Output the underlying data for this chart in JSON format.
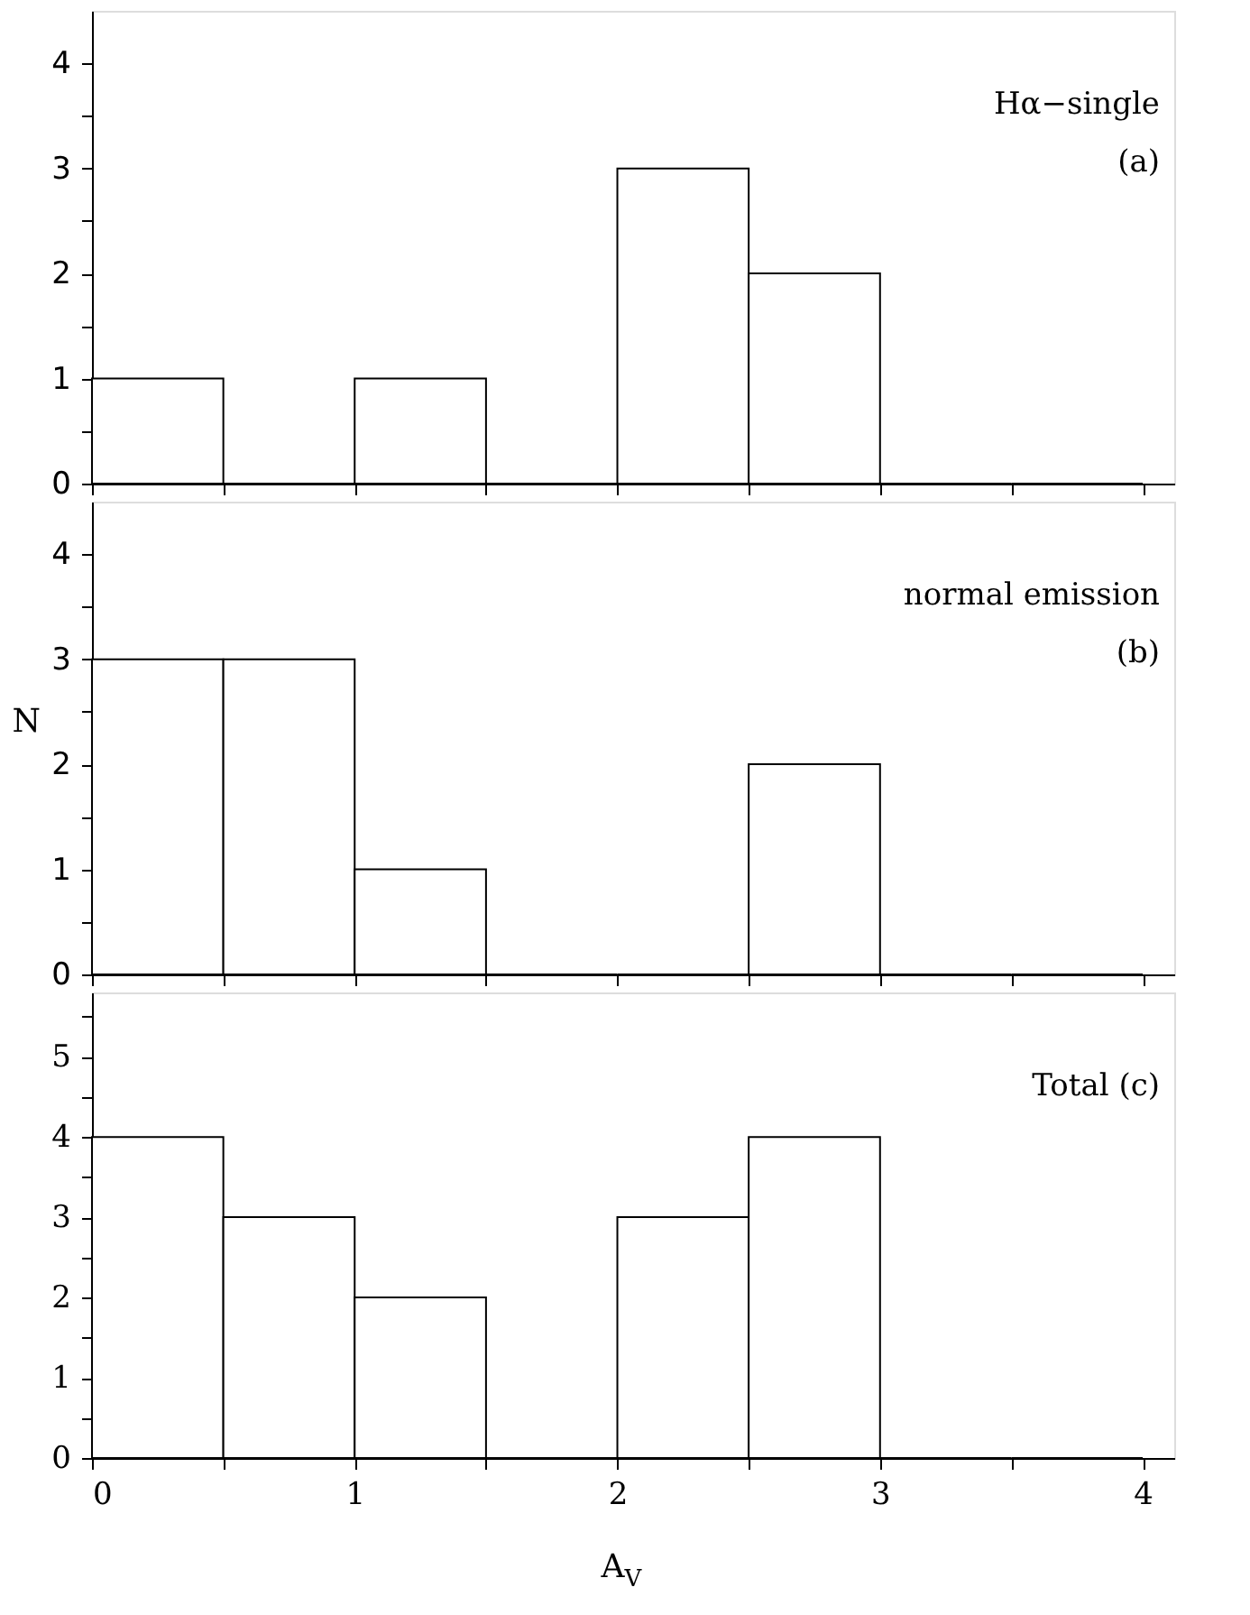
{
  "chart_data": [
    {
      "type": "histogram",
      "bins": [
        0,
        0.5,
        1,
        1.5,
        2,
        2.5,
        3,
        3.5,
        4
      ],
      "values": [
        1,
        0,
        1,
        0,
        3,
        2,
        0,
        0
      ],
      "color": "#ffffff",
      "xlim": [
        0,
        4.12
      ],
      "xticks": [
        0,
        {
          "value": 0.5,
          "label": null
        },
        1,
        {
          "value": 1.5,
          "label": null
        },
        2,
        {
          "value": 2.5,
          "label": null
        },
        3,
        {
          "value": 3.5,
          "label": null
        },
        4
      ],
      "ylim": [
        0,
        4.5
      ],
      "yticks": [
        0,
        {
          "value": 0.5,
          "label": null
        },
        1,
        {
          "value": 1.5,
          "label": null
        },
        2,
        {
          "value": 2.5,
          "label": null
        },
        3,
        {
          "value": 3.5,
          "label": null
        },
        4
      ],
      "tick_labels": "y",
      "annotations": [
        "Hα−single",
        "(a)"
      ]
    },
    {
      "type": "histogram",
      "bins": [
        0,
        0.5,
        1,
        1.5,
        2,
        2.5,
        3,
        3.5,
        4
      ],
      "values": [
        3,
        3,
        1,
        0,
        0,
        2,
        0,
        0
      ],
      "color": "#ffffff",
      "xlim": [
        0,
        4.12
      ],
      "xticks": [
        0,
        {
          "value": 0.5,
          "label": null
        },
        1,
        {
          "value": 1.5,
          "label": null
        },
        2,
        {
          "value": 2.5,
          "label": null
        },
        3,
        {
          "value": 3.5,
          "label": null
        },
        4
      ],
      "ylim": [
        0,
        4.5
      ],
      "yticks": [
        0,
        {
          "value": 0.5,
          "label": null
        },
        1,
        {
          "value": 1.5,
          "label": null
        },
        2,
        {
          "value": 2.5,
          "label": null
        },
        3,
        {
          "value": 3.5,
          "label": null
        },
        4
      ],
      "ylabel": "N",
      "tick_labels": "y",
      "annotations": [
        "normal emission",
        "(b)"
      ]
    },
    {
      "type": "histogram",
      "bins": [
        0,
        0.5,
        1,
        1.5,
        2,
        2.5,
        3,
        3.5,
        4
      ],
      "values": [
        4,
        3,
        2,
        0,
        3,
        4,
        0,
        0
      ],
      "color": "#ffffff",
      "xlim": [
        0,
        4.12
      ],
      "xticks": [
        0,
        {
          "value": 0.5,
          "label": null
        },
        1,
        {
          "value": 1.5,
          "label": null
        },
        2,
        {
          "value": 2.5,
          "label": null
        },
        3,
        {
          "value": 3.5,
          "label": null
        },
        4
      ],
      "ylim": [
        0,
        5.8
      ],
      "yticks": [
        0,
        {
          "value": 0.5,
          "label": null
        },
        1,
        {
          "value": 1.5,
          "label": null
        },
        2,
        {
          "value": 2.5,
          "label": null
        },
        3,
        {
          "value": 3.5,
          "label": null
        },
        4,
        {
          "value": 4.5,
          "label": null
        },
        5,
        {
          "value": 5.5,
          "label": null
        }
      ],
      "xlabel": "A$_{V}$",
      "annotations": [
        "Total  (c)"
      ]
    }
  ]
}
